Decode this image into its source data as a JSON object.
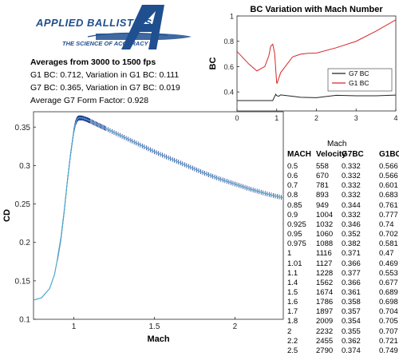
{
  "logo": {
    "name": "APPLIED BALLISTICS",
    "tagline": "THE SCIENCE OF ACCURACY"
  },
  "stats": {
    "heading": "Averages from 3000 to 1500 fps",
    "g1_line": "G1 BC: 0.712, Variation in G1 BC: 0.111",
    "g7_line": "G7 BC: 0.365, Variation in G7 BC: 0.019",
    "ff_line": "Average G7 Form Factor: 0.928"
  },
  "table": {
    "caption": "Mach",
    "headers": [
      "MACH",
      "Velocity",
      "G7BC",
      "G1BC"
    ],
    "rows": [
      [
        "0.5",
        "558",
        "0.332",
        "0.566"
      ],
      [
        "0.6",
        "670",
        "0.332",
        "0.566"
      ],
      [
        "0.7",
        "781",
        "0.332",
        "0.601"
      ],
      [
        "0.8",
        "893",
        "0.332",
        "0.683"
      ],
      [
        "0.85",
        "949",
        "0.344",
        "0.761"
      ],
      [
        "0.9",
        "1004",
        "0.332",
        "0.777"
      ],
      [
        "0.925",
        "1032",
        "0.346",
        "0.74"
      ],
      [
        "0.95",
        "1060",
        "0.352",
        "0.702"
      ],
      [
        "0.975",
        "1088",
        "0.382",
        "0.581"
      ],
      [
        "1",
        "1116",
        "0.371",
        "0.47"
      ],
      [
        "1.01",
        "1127",
        "0.366",
        "0.469"
      ],
      [
        "1.1",
        "1228",
        "0.377",
        "0.553"
      ],
      [
        "1.4",
        "1562",
        "0.366",
        "0.677"
      ],
      [
        "1.5",
        "1674",
        "0.361",
        "0.689"
      ],
      [
        "1.6",
        "1786",
        "0.358",
        "0.698"
      ],
      [
        "1.7",
        "1897",
        "0.357",
        "0.704"
      ],
      [
        "1.8",
        "2009",
        "0.354",
        "0.705"
      ],
      [
        "2",
        "2232",
        "0.355",
        "0.707"
      ],
      [
        "2.2",
        "2455",
        "0.362",
        "0.721"
      ],
      [
        "2.5",
        "2790",
        "0.374",
        "0.749"
      ]
    ]
  },
  "chart_data": [
    {
      "type": "line",
      "title": "",
      "xlabel": "Mach",
      "ylabel": "CD",
      "xlim": [
        0.75,
        2.3
      ],
      "ylim": [
        0.1,
        0.37
      ],
      "xticks": [
        1,
        1.5,
        2
      ],
      "yticks": [
        0.1,
        0.15,
        0.2,
        0.25,
        0.3,
        0.35
      ],
      "grid": false,
      "series": [
        {
          "x": [
            0.75,
            0.8,
            0.85,
            0.88,
            0.9,
            0.92,
            0.94,
            0.96,
            0.98,
            1.0,
            1.01,
            1.02,
            1.03,
            1.05,
            1.08,
            1.1,
            1.15,
            1.2,
            1.3,
            1.4,
            1.5,
            1.6,
            1.7,
            1.8,
            1.9,
            2.0,
            2.1,
            2.2,
            2.3
          ],
          "values": [
            0.125,
            0.128,
            0.14,
            0.158,
            0.18,
            0.205,
            0.24,
            0.28,
            0.315,
            0.345,
            0.355,
            0.36,
            0.362,
            0.362,
            0.36,
            0.358,
            0.353,
            0.348,
            0.338,
            0.328,
            0.318,
            0.309,
            0.3,
            0.291,
            0.283,
            0.276,
            0.269,
            0.263,
            0.258
          ],
          "color": "#4da6c8"
        }
      ]
    },
    {
      "type": "line",
      "title": "BC Variation with Mach Number",
      "xlabel": "",
      "ylabel": "BC",
      "xlim": [
        0,
        4
      ],
      "ylim": [
        0.25,
        1.0
      ],
      "xticks": [
        0,
        1,
        2,
        3,
        4
      ],
      "yticks": [
        0.4,
        0.6,
        0.8,
        1
      ],
      "legend": "bottom-right",
      "series": [
        {
          "name": "G7 BC",
          "color": "#222222",
          "x": [
            0,
            0.5,
            0.8,
            0.9,
            0.975,
            1.0,
            1.05,
            1.1,
            1.4,
            1.6,
            2,
            2.5,
            3,
            3.5,
            4
          ],
          "values": [
            0.332,
            0.332,
            0.332,
            0.332,
            0.382,
            0.371,
            0.366,
            0.377,
            0.366,
            0.358,
            0.355,
            0.374,
            0.37,
            0.37,
            0.375
          ]
        },
        {
          "name": "G1 BC",
          "color": "#d62728",
          "x": [
            0,
            0.3,
            0.5,
            0.7,
            0.8,
            0.85,
            0.9,
            0.925,
            0.95,
            0.975,
            1.0,
            1.01,
            1.1,
            1.4,
            1.6,
            1.8,
            2.0,
            2.5,
            3.0,
            3.5,
            4.0
          ],
          "values": [
            0.72,
            0.62,
            0.566,
            0.601,
            0.683,
            0.761,
            0.777,
            0.74,
            0.702,
            0.581,
            0.47,
            0.469,
            0.553,
            0.677,
            0.698,
            0.705,
            0.707,
            0.749,
            0.8,
            0.88,
            0.97
          ]
        }
      ]
    }
  ],
  "colors": {
    "logo_blue": "#1f4f8f",
    "axis": "#262626",
    "error_bars": "#1f3a93"
  }
}
